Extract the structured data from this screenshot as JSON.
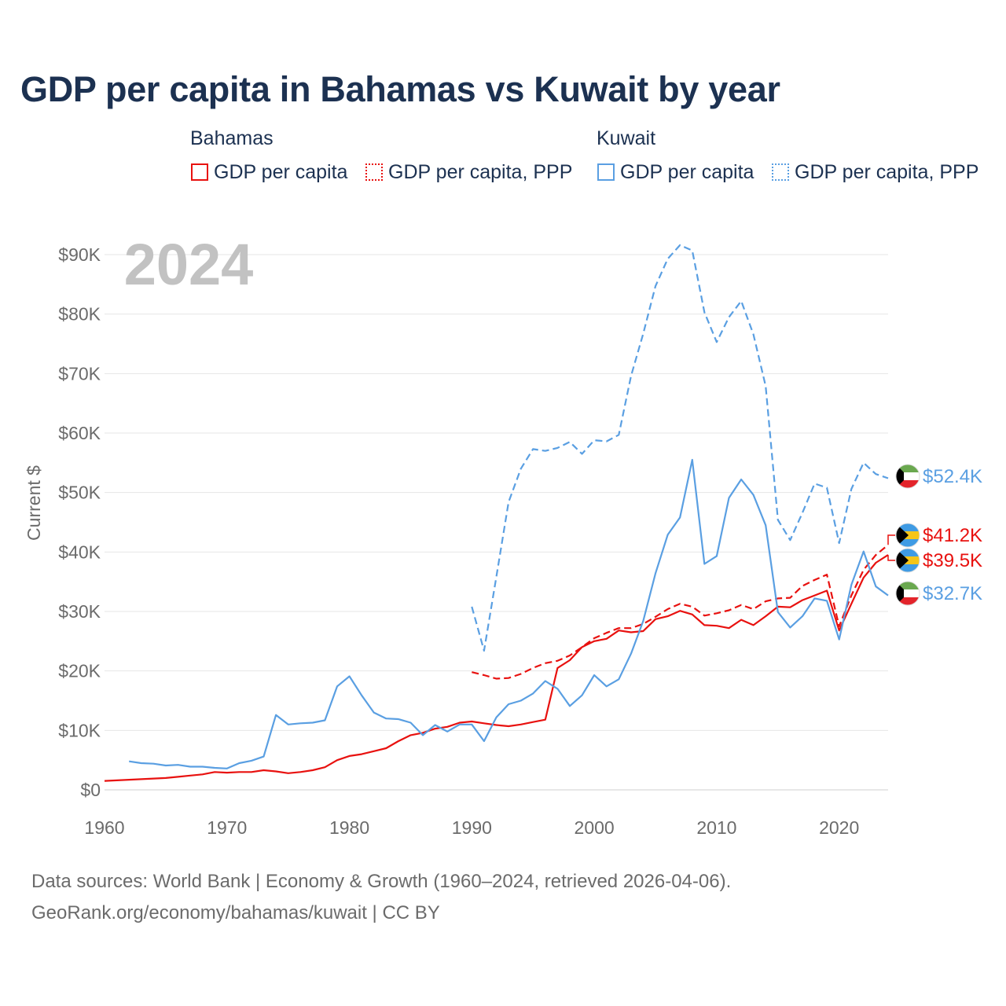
{
  "title": "GDP per capita in Bahamas vs Kuwait by year",
  "legend": {
    "groups": [
      {
        "name": "Bahamas",
        "items": [
          {
            "label": "GDP per capita",
            "style": "solid",
            "color": "#e8110f"
          },
          {
            "label": "GDP per capita, PPP",
            "style": "dotted",
            "color": "#e8110f"
          }
        ]
      },
      {
        "name": "Kuwait",
        "items": [
          {
            "label": "GDP per capita",
            "style": "solid",
            "color": "#5a9fe2"
          },
          {
            "label": "GDP per capita, PPP",
            "style": "dotted",
            "color": "#5a9fe2"
          }
        ]
      }
    ]
  },
  "footer": {
    "line1": "Data sources: World Bank | Economy & Growth (1960–2024, retrieved 2026-04-06).",
    "line2": "GeoRank.org/economy/bahamas/kuwait | CC BY"
  },
  "chart_data": {
    "type": "line",
    "year_label": "2024",
    "ylabel": "Current $",
    "xlabel": "",
    "xlim": [
      1960,
      2024
    ],
    "ylim": [
      0,
      90000
    ],
    "x_ticks": [
      1960,
      1970,
      1980,
      1990,
      2000,
      2010,
      2020
    ],
    "x_tick_labels": [
      "1960",
      "1970",
      "1980",
      "1990",
      "2000",
      "2010",
      "2020"
    ],
    "y_ticks": [
      0,
      10000,
      20000,
      30000,
      40000,
      50000,
      60000,
      70000,
      80000,
      90000
    ],
    "y_tick_labels": [
      "$0",
      "$10K",
      "$20K",
      "$30K",
      "$40K",
      "$50K",
      "$60K",
      "$70K",
      "$80K",
      "$90K"
    ],
    "grid": true,
    "series": [
      {
        "id": "bahamas-gdp",
        "name": "Bahamas GDP per capita",
        "color": "#e8110f",
        "dash": "solid",
        "end_label": "$39.5K",
        "flag": "bahamas",
        "x": [
          1960,
          1961,
          1962,
          1963,
          1964,
          1965,
          1966,
          1967,
          1968,
          1969,
          1970,
          1971,
          1972,
          1973,
          1974,
          1975,
          1976,
          1977,
          1978,
          1979,
          1980,
          1981,
          1982,
          1983,
          1984,
          1985,
          1986,
          1987,
          1988,
          1989,
          1990,
          1991,
          1992,
          1993,
          1994,
          1995,
          1996,
          1997,
          1998,
          1999,
          2000,
          2001,
          2002,
          2003,
          2004,
          2005,
          2006,
          2007,
          2008,
          2009,
          2010,
          2011,
          2012,
          2013,
          2014,
          2015,
          2016,
          2017,
          2018,
          2019,
          2020,
          2021,
          2022,
          2023,
          2024
        ],
        "y": [
          1500,
          1600,
          1700,
          1800,
          1900,
          2000,
          2200,
          2400,
          2600,
          3000,
          2900,
          3000,
          3000,
          3300,
          3100,
          2800,
          3000,
          3300,
          3800,
          5000,
          5700,
          6000,
          6500,
          7000,
          8200,
          9200,
          9600,
          10300,
          10600,
          11300,
          11500,
          11200,
          10900,
          10700,
          11000,
          11400,
          11800,
          20500,
          21800,
          24000,
          25000,
          25400,
          26800,
          26500,
          26700,
          28700,
          29200,
          30100,
          29500,
          27700,
          27600,
          27200,
          28600,
          27700,
          29200,
          30800,
          30700,
          31900,
          32700,
          33500,
          26800,
          31300,
          35700,
          38200,
          39500
        ]
      },
      {
        "id": "bahamas-ppp",
        "name": "Bahamas GDP per capita, PPP",
        "color": "#e8110f",
        "dash": "dashed",
        "end_label": "$41.2K",
        "flag": "bahamas",
        "x": [
          1990,
          1991,
          1992,
          1993,
          1994,
          1995,
          1996,
          1997,
          1998,
          1999,
          2000,
          2001,
          2002,
          2003,
          2004,
          2005,
          2006,
          2007,
          2008,
          2009,
          2010,
          2011,
          2012,
          2013,
          2014,
          2015,
          2016,
          2017,
          2018,
          2019,
          2020,
          2021,
          2022,
          2023,
          2024
        ],
        "y": [
          19800,
          19300,
          18700,
          18800,
          19500,
          20500,
          21300,
          21700,
          22600,
          24000,
          25500,
          26400,
          27200,
          27200,
          27900,
          29100,
          30400,
          31300,
          30800,
          29300,
          29700,
          30200,
          31100,
          30400,
          31700,
          32200,
          32300,
          34300,
          35300,
          36200,
          27500,
          32700,
          37000,
          39500,
          41200
        ]
      },
      {
        "id": "kuwait-gdp",
        "name": "Kuwait GDP per capita",
        "color": "#5a9fe2",
        "dash": "solid",
        "end_label": "$32.7K",
        "flag": "kuwait",
        "x": [
          1962,
          1963,
          1964,
          1965,
          1966,
          1967,
          1968,
          1969,
          1970,
          1971,
          1972,
          1973,
          1974,
          1975,
          1976,
          1977,
          1978,
          1979,
          1980,
          1981,
          1982,
          1983,
          1984,
          1985,
          1986,
          1987,
          1988,
          1989,
          1990,
          1991,
          1992,
          1993,
          1994,
          1995,
          1996,
          1997,
          1998,
          1999,
          2000,
          2001,
          2002,
          2003,
          2004,
          2005,
          2006,
          2007,
          2008,
          2009,
          2010,
          2011,
          2012,
          2013,
          2014,
          2015,
          2016,
          2017,
          2018,
          2019,
          2020,
          2021,
          2022,
          2023,
          2024
        ],
        "y": [
          4800,
          4500,
          4400,
          4100,
          4200,
          3900,
          3900,
          3700,
          3600,
          4500,
          4900,
          5600,
          12600,
          11000,
          11200,
          11300,
          11700,
          17400,
          19100,
          15900,
          13000,
          12000,
          11900,
          11300,
          9200,
          10900,
          9800,
          11000,
          11000,
          8200,
          12200,
          14400,
          15000,
          16200,
          18300,
          17000,
          14100,
          15900,
          19300,
          17400,
          18600,
          22900,
          28400,
          36400,
          42900,
          45800,
          55500,
          38000,
          39300,
          49100,
          52200,
          49600,
          44500,
          29900,
          27300,
          29200,
          32200,
          31800,
          25300,
          34500,
          40100,
          34200,
          32700
        ]
      },
      {
        "id": "kuwait-ppp",
        "name": "Kuwait GDP per capita, PPP",
        "color": "#5a9fe2",
        "dash": "dashed",
        "end_label": "$52.4K",
        "flag": "kuwait",
        "x": [
          1990,
          1991,
          1992,
          1993,
          1994,
          1995,
          1996,
          1997,
          1998,
          1999,
          2000,
          2001,
          2002,
          2003,
          2004,
          2005,
          2006,
          2007,
          2008,
          2009,
          2010,
          2011,
          2012,
          2013,
          2014,
          2015,
          2016,
          2017,
          2018,
          2019,
          2020,
          2021,
          2022,
          2023,
          2024
        ],
        "y": [
          30800,
          23400,
          35800,
          48400,
          54000,
          57300,
          57000,
          57500,
          58500,
          56500,
          58800,
          58600,
          59700,
          69600,
          76700,
          84700,
          89300,
          91600,
          90700,
          80300,
          75300,
          79500,
          82200,
          76600,
          67900,
          45400,
          42000,
          46600,
          51500,
          50800,
          41500,
          50600,
          55000,
          53100,
          52400
        ]
      }
    ]
  }
}
